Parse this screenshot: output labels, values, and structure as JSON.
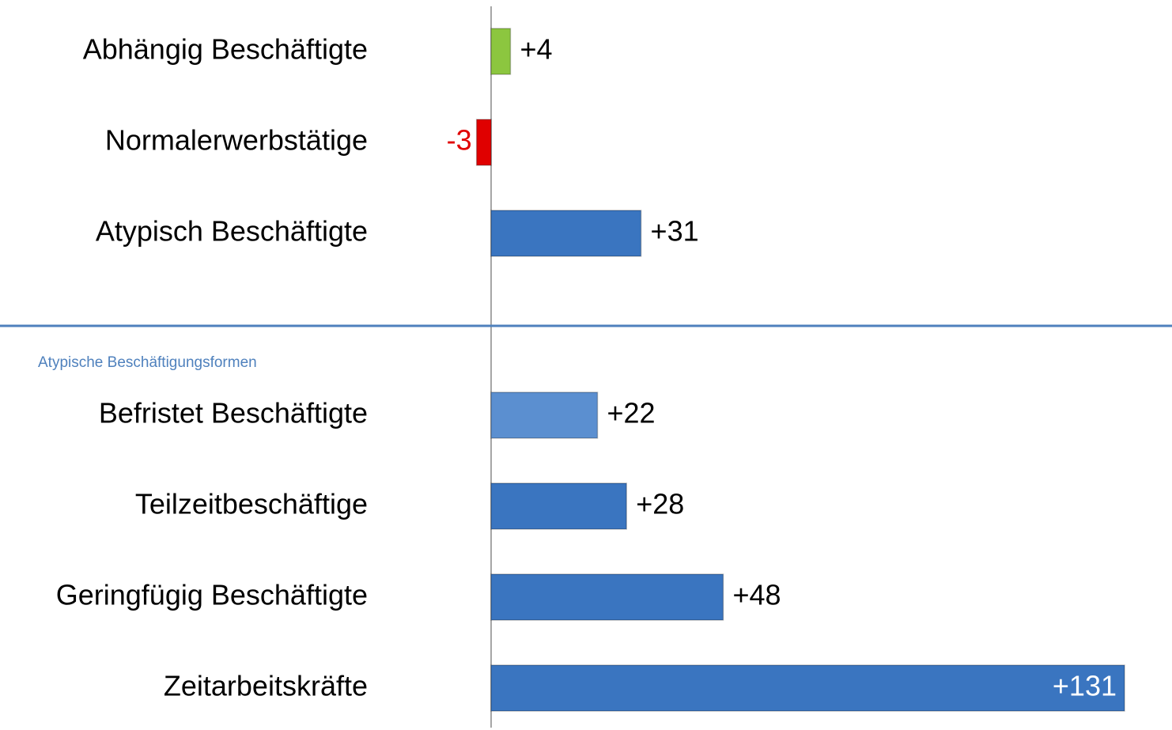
{
  "chart_data": {
    "type": "bar",
    "categories": [
      "Abhängig Beschäftigte",
      "Normalerwerbstätige",
      "Atypisch Beschäftigte",
      "Befristet Beschäftigte",
      "Teilzeitbeschäftige",
      "Geringfügig Beschäftigte",
      "Zeitarbeitskräfte"
    ],
    "values": [
      4,
      -3,
      31,
      22,
      28,
      48,
      131
    ],
    "value_labels": [
      "+4",
      "-3",
      "+31",
      "+22",
      "+28",
      "+48",
      "+131"
    ],
    "colors": [
      "#8cc63f",
      "#e00000",
      "#3a75c0",
      "#5b8fd0",
      "#3a75c0",
      "#3a75c0",
      "#3a75c0"
    ],
    "annotation": "Atypische Beschäftigungsformen"
  }
}
